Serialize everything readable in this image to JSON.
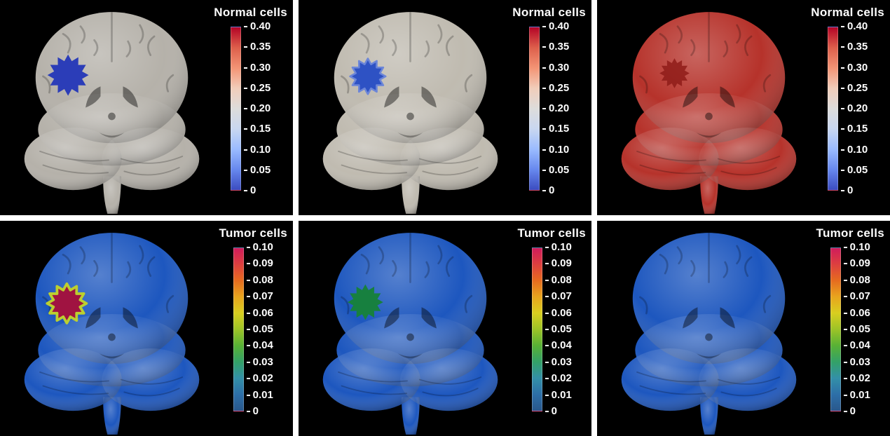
{
  "colorbars": {
    "normal": {
      "title": "Normal cells",
      "ticks": [
        "0.40",
        "0.35",
        "0.30",
        "0.25",
        "0.20",
        "0.15",
        "0.10",
        "0.05",
        "0"
      ],
      "stops": [
        "#3b4cc0",
        "#6788ee",
        "#9abbff",
        "#c9d7f0",
        "#dddcdb",
        "#f1cdba",
        "#f39475",
        "#dd5f4b",
        "#b40426"
      ]
    },
    "tumor": {
      "title": "Tumor cells",
      "ticks": [
        "0.10",
        "0.09",
        "0.08",
        "0.07",
        "0.06",
        "0.05",
        "0.04",
        "0.03",
        "0.02",
        "0.01",
        "0"
      ],
      "stops": [
        "#29588c",
        "#2d6fa8",
        "#3390a8",
        "#33a168",
        "#58b135",
        "#9cc327",
        "#d8ce1f",
        "#e8a51e",
        "#e66c1f",
        "#dd3f3f",
        "#d01c5c"
      ]
    }
  },
  "panels": [
    {
      "brain_color": "#b2aea6",
      "blob_fill": "#2b3db8",
      "blob_stroke": "none",
      "blob_stroke_width": "0",
      "blob_visibility": "visible"
    },
    {
      "brain_color": "#bdb8ad",
      "blob_fill": "#2e52c4",
      "blob_stroke": "#6c86d8",
      "blob_stroke_width": "3",
      "blob_visibility": "visible"
    },
    {
      "brain_color": "#b32a22",
      "blob_fill": "#8f1c19",
      "blob_stroke": "none",
      "blob_stroke_width": "0",
      "blob_visibility": "visible"
    },
    {
      "brain_color": "#1450bc",
      "blob_fill": "#a01341",
      "blob_stroke": "#bccf2f",
      "blob_stroke_width": "4",
      "blob_visibility": "visible"
    },
    {
      "brain_color": "#1450bc",
      "blob_fill": "#17803f",
      "blob_stroke": "none",
      "blob_stroke_width": "0",
      "blob_visibility": "visible"
    },
    {
      "brain_color": "#1450bc",
      "blob_fill": "#1450bc",
      "blob_stroke": "none",
      "blob_stroke_width": "0",
      "blob_visibility": "hidden"
    }
  ],
  "chart_data": [
    {
      "type": "heatmap",
      "title": "Normal cells",
      "row": "top",
      "columns": 3,
      "colorbar": {
        "label": "Normal cells",
        "min": 0,
        "max": 0.4,
        "tick_labels": [
          "0.40",
          "0.35",
          "0.30",
          "0.25",
          "0.20",
          "0.15",
          "0.10",
          "0.05",
          "0"
        ],
        "tick_values": [
          0.4,
          0.35,
          0.3,
          0.25,
          0.2,
          0.15,
          0.1,
          0.05,
          0
        ],
        "colormap": "cool-to-warm (blue at 0, gray mid, red at 0.40)",
        "legend_position": "right"
      },
      "panels": [
        {
          "position": "left",
          "surface_value_approx": 0.2,
          "lesion": {
            "present": true,
            "value_approx": 0.0,
            "color": "blue",
            "location": "left hemisphere, upper"
          }
        },
        {
          "position": "center",
          "surface_value_approx": 0.22,
          "lesion": {
            "present": true,
            "value_approx": 0.05,
            "color": "blue",
            "location": "left hemisphere, upper"
          }
        },
        {
          "position": "right",
          "surface_value_approx": 0.4,
          "lesion": {
            "present": true,
            "value_approx": 0.35,
            "color": "darker red",
            "location": "left hemisphere, upper"
          }
        }
      ]
    },
    {
      "type": "heatmap",
      "title": "Tumor cells",
      "row": "bottom",
      "columns": 3,
      "colorbar": {
        "label": "Tumor cells",
        "min": 0,
        "max": 0.1,
        "tick_labels": [
          "0.10",
          "0.09",
          "0.08",
          "0.07",
          "0.06",
          "0.05",
          "0.04",
          "0.03",
          "0.02",
          "0.01",
          "0"
        ],
        "tick_values": [
          0.1,
          0.09,
          0.08,
          0.07,
          0.06,
          0.05,
          0.04,
          0.03,
          0.02,
          0.01,
          0
        ],
        "colormap": "dark blue at 0 through green and yellow to crimson/magenta at 0.10",
        "legend_position": "right"
      },
      "panels": [
        {
          "position": "left",
          "surface_value_approx": 0.005,
          "lesion": {
            "present": true,
            "value_approx": 0.09,
            "color": "crimson with yellow-green rim",
            "location": "left hemisphere, upper"
          }
        },
        {
          "position": "center",
          "surface_value_approx": 0.005,
          "lesion": {
            "present": true,
            "value_approx": 0.035,
            "color": "green",
            "location": "left hemisphere, upper"
          }
        },
        {
          "position": "right",
          "surface_value_approx": 0.005,
          "lesion": {
            "present": false
          }
        }
      ]
    }
  ]
}
